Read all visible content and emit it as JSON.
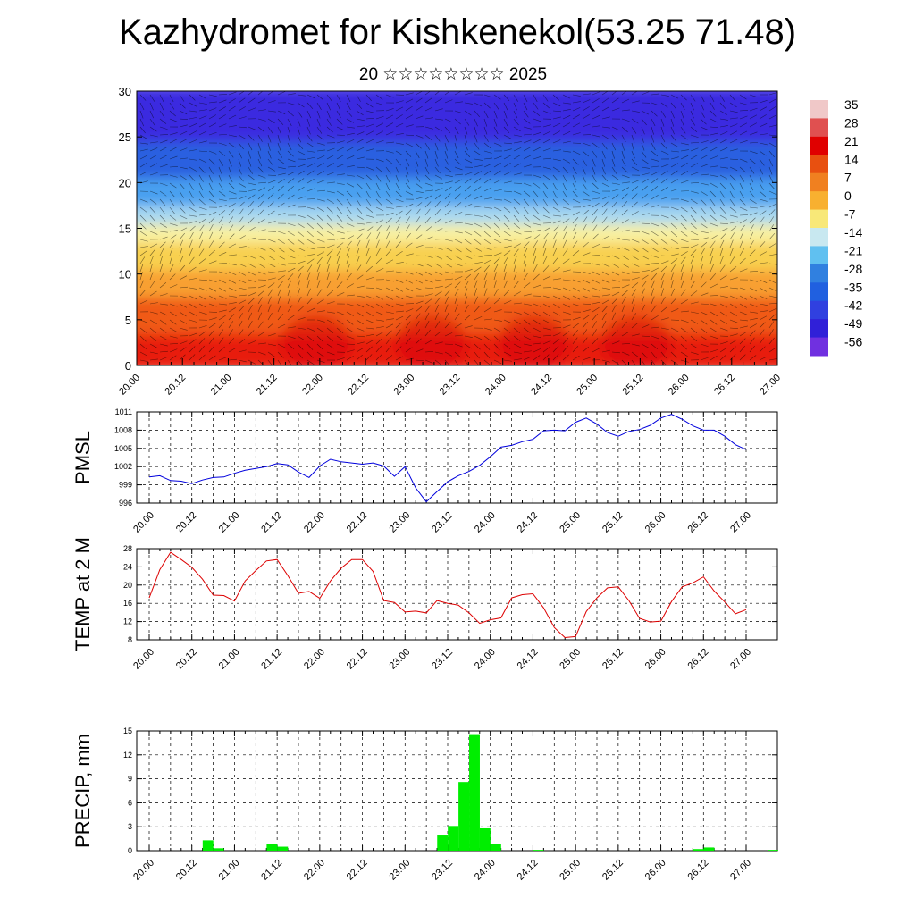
{
  "title": "Kazhydromet for Kishkenekol(53.25 71.48)",
  "subtitle": "20 ☆☆☆☆☆☆☆☆ 2025",
  "time_labels": [
    "20.00",
    "20.12",
    "21.00",
    "21.12",
    "22.00",
    "22.12",
    "23.00",
    "23.12",
    "24.00",
    "24.12",
    "25.00",
    "25.12",
    "26.00",
    "26.12",
    "27.00"
  ],
  "colors": {
    "pmsl": "#0000dd",
    "temp": "#dd0000",
    "precip": "#00ee00",
    "grid": "#000000"
  },
  "chart_data": [
    {
      "id": "cross-section",
      "type": "heatmap",
      "ylim": [
        0,
        30
      ],
      "yticks": [
        0,
        5,
        10,
        15,
        20,
        25,
        30
      ],
      "colorbar": {
        "labels": [
          "35",
          "28",
          "21",
          "14",
          "7",
          "0",
          "-7",
          "-14",
          "-21",
          "-28",
          "-35",
          "-42",
          "-49",
          "-56"
        ],
        "colors": [
          "#f0c8c8",
          "#e05050",
          "#e00000",
          "#e85010",
          "#f08020",
          "#f8b030",
          "#f8e878",
          "#c8e8f0",
          "#60c0f0",
          "#3080e0",
          "#2060e0",
          "#3040e0",
          "#3020d8",
          "#7030e0"
        ]
      },
      "bands": [
        {
          "level_max": 4,
          "color": "#e81a10"
        },
        {
          "level_max": 8,
          "color": "#f05a18"
        },
        {
          "level_max": 11,
          "color": "#f8a030"
        },
        {
          "level_max": 14,
          "color": "#f8d050"
        },
        {
          "level_max": 16,
          "color": "#f8f0a0"
        },
        {
          "level_max": 18,
          "color": "#a8d8f0"
        },
        {
          "level_max": 21,
          "color": "#4aa0f0"
        },
        {
          "level_max": 25,
          "color": "#2a60e0"
        },
        {
          "level_max": 30,
          "color": "#3a2ae0"
        }
      ]
    },
    {
      "id": "pmsl",
      "type": "line",
      "ylabel": "PMSL",
      "ylim": [
        996,
        1011
      ],
      "yticks": [
        996,
        999,
        1002,
        1005,
        1008,
        1011
      ],
      "series": [
        {
          "values": [
            1000.3,
            1000.5,
            999.7,
            999.6,
            999.2,
            999.8,
            1000.2,
            1000.3,
            1000.9,
            1001.4,
            1001.7,
            1002.0,
            1002.5,
            1002.3,
            1001.1,
            1000.2,
            1002.1,
            1003.2,
            1002.8,
            1002.6,
            1002.4,
            1002.6,
            1002.1,
            1000.4,
            1002.0,
            998.5,
            996.2,
            997.9,
            999.5,
            1000.5,
            1001.2,
            1002.2,
            1003.6,
            1005.2,
            1005.5,
            1006.1,
            1006.5,
            1007.9,
            1008.0,
            1007.9,
            1009.3,
            1010.0,
            1009.0,
            1007.6,
            1007.0,
            1007.8,
            1008.1,
            1008.8,
            1010.0,
            1010.6,
            1009.8,
            1008.7,
            1008.0,
            1008.0,
            1007.0,
            1005.6,
            1004.8
          ]
        }
      ]
    },
    {
      "id": "temp",
      "type": "line",
      "ylabel": "TEMP at 2 M",
      "ylim": [
        8,
        28
      ],
      "yticks": [
        8,
        12,
        16,
        20,
        24,
        28
      ],
      "series": [
        {
          "values": [
            17.2,
            23.4,
            27.2,
            25.6,
            23.9,
            21.3,
            17.8,
            17.7,
            16.5,
            20.9,
            23.2,
            25.3,
            25.6,
            22.1,
            18.2,
            18.6,
            17.1,
            20.9,
            23.7,
            25.6,
            25.6,
            23.0,
            16.6,
            16.2,
            14.1,
            14.3,
            13.9,
            16.6,
            16.0,
            15.6,
            13.9,
            11.6,
            12.4,
            12.8,
            17.2,
            17.9,
            18.1,
            15.0,
            10.7,
            8.5,
            8.7,
            14.2,
            17.2,
            19.4,
            19.6,
            16.6,
            12.7,
            11.9,
            12.1,
            16.4,
            19.6,
            20.5,
            21.8,
            18.7,
            16.3,
            13.7,
            14.6
          ]
        }
      ]
    },
    {
      "id": "precip",
      "type": "bar",
      "ylabel": "PRECIP, mm",
      "ylim": [
        0,
        15
      ],
      "yticks": [
        0,
        3,
        6,
        9,
        12,
        15
      ],
      "values": [
        0,
        0,
        0,
        1.3,
        0.3,
        0,
        0,
        0,
        0,
        0.8,
        0.5,
        0,
        0,
        0,
        0,
        0,
        0,
        0,
        0,
        0,
        0,
        0,
        0,
        0,
        0,
        1.9,
        3.1,
        8.6,
        14.6,
        2.8,
        0.8,
        0,
        0,
        0,
        0.1,
        0,
        0,
        0,
        0,
        0,
        0,
        0,
        0,
        0,
        0,
        0,
        0,
        0,
        0,
        0.2,
        0.4,
        0,
        0,
        0,
        0,
        0,
        0.1
      ]
    }
  ]
}
